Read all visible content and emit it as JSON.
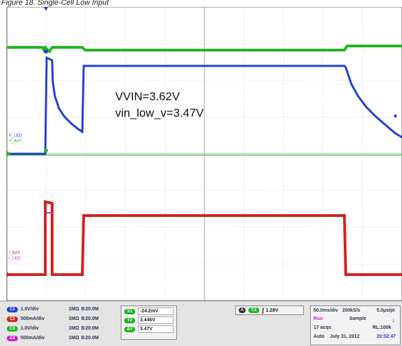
{
  "caption": "Figure 18. Single-Cell Low Input",
  "scope": {
    "annotation_line1": "VVIN=3.62V",
    "annotation_line2": "vin_low_v=3.47V",
    "trace_labels": {
      "v_led": "V_LED",
      "v_bat": "V_BAT",
      "i_bat": "I_BAT",
      "i_led": "I_LED"
    }
  },
  "channels": [
    {
      "badge": "C1",
      "color": "#1f3fcf",
      "scale": "1.0V/div",
      "impedance": "1MΩ",
      "bw": "20.0M"
    },
    {
      "badge": "C2",
      "color": "#d42020",
      "scale": "500mA/div",
      "impedance": "1MΩ",
      "bw": "20.0M"
    },
    {
      "badge": "C3",
      "color": "#22b422",
      "scale": "1.0V/div",
      "impedance": "1MΩ",
      "bw": "20.0M"
    },
    {
      "badge": "C4",
      "color": "#d020c8",
      "scale": "500mA/div",
      "impedance": "1MΩ",
      "bw": "20.0M"
    }
  ],
  "measurements": [
    {
      "label": "X1",
      "value": "-24.2mV"
    },
    {
      "label": "Y2",
      "value": "3.446V"
    },
    {
      "label": "ΔY",
      "value": "3.47V"
    }
  ],
  "trigger": {
    "source": "C3",
    "level": "1.28V"
  },
  "acquisition": {
    "timebase": "50.0ms/div",
    "sample_rate": "200kS/s",
    "resolution": "5.0μs/pt",
    "state": "Run",
    "mode": "Sample",
    "acqs": "17 acqs",
    "record_length": "RL:100k",
    "trigger_mode": "Auto",
    "date": "July 31, 2012",
    "time": "20:52:47"
  },
  "colors": {
    "ch1": "#1f3fcf",
    "ch2": "#d42020",
    "ch3": "#22b422",
    "ch4": "#d020c8",
    "grid": "#8c8c8c"
  }
}
